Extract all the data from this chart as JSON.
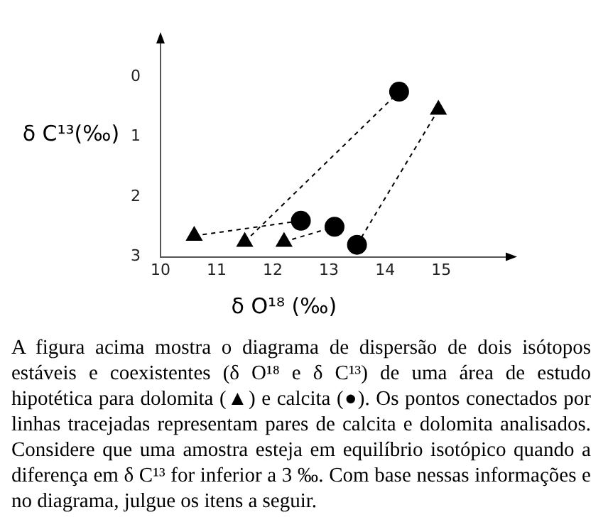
{
  "chart_data": {
    "type": "scatter",
    "xlabel": "δ O¹⁸ (‰)",
    "ylabel": "δ C¹³(‰)",
    "xlim": [
      10,
      16.2
    ],
    "ylim": [
      3,
      -0.6
    ],
    "xticks": [
      10,
      11,
      12,
      13,
      14,
      15
    ],
    "yticks": [
      0,
      1,
      2,
      3
    ],
    "grid": false,
    "legend": false,
    "annotations": [
      "A figura acima mostra o diagrama de dispersão de dois isótopos estáveis e coexistentes (δ O¹⁸ e δ C¹³) de uma área de estudo hipotética para dolomita (▲) e calcita (●). Os pontos conectados por linhas tracejadas representam pares de calcita e dolomita analisados. Considere que uma amostra esteja em equilíbrio isotópico quando a diferença em δ C¹³ for inferior a 3 ‰. Com base nessas informações e no diagrama, julgue os itens a seguir."
    ],
    "series": [
      {
        "type": "line",
        "color": "#000000",
        "marker": "none",
        "line_style": "dashed",
        "x": [
          10.6,
          12.5
        ],
        "values": [
          2.65,
          2.4
        ]
      },
      {
        "type": "line",
        "color": "#000000",
        "marker": "none",
        "line_style": "dashed",
        "x": [
          11.5,
          14.25
        ],
        "values": [
          2.75,
          0.25
        ]
      },
      {
        "type": "line",
        "color": "#000000",
        "marker": "none",
        "line_style": "dashed",
        "x": [
          12.2,
          13.1
        ],
        "values": [
          2.75,
          2.5
        ]
      },
      {
        "type": "line",
        "color": "#000000",
        "marker": "none",
        "line_style": "dashed",
        "x": [
          13.5,
          14.95
        ],
        "values": [
          2.8,
          0.55
        ]
      },
      {
        "type": "scatter",
        "color": "#000000",
        "marker": "triangle",
        "x": [
          10.6,
          11.5,
          12.2,
          14.95
        ],
        "values": [
          2.65,
          2.75,
          2.75,
          0.55
        ]
      },
      {
        "type": "scatter",
        "color": "#000000",
        "marker": "circle",
        "x": [
          12.5,
          13.1,
          13.5,
          14.25
        ],
        "values": [
          2.4,
          2.5,
          2.8,
          0.25
        ]
      }
    ]
  }
}
